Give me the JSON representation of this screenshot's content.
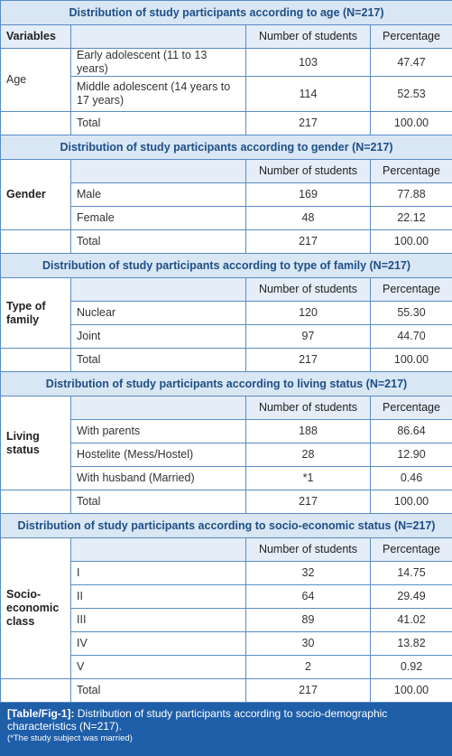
{
  "sections": [
    {
      "title": "Distribution of study participants according to age (N=217)",
      "header": {
        "variable": "Variables",
        "number": "Number of students",
        "percentage": "Percentage"
      },
      "variable": "Age",
      "rows": [
        {
          "label": "Early adolescent (11 to 13 years)",
          "number": "103",
          "percentage": "47.47"
        },
        {
          "label": "Middle adolescent (14 years to 17 years)",
          "number": "114",
          "percentage": "52.53"
        }
      ],
      "total": {
        "label": "Total",
        "number": "217",
        "percentage": "100.00"
      }
    },
    {
      "title": "Distribution of study participants according to gender (N=217)",
      "header": {
        "number": "Number of students",
        "percentage": "Percentage"
      },
      "variable": "Gender",
      "rows": [
        {
          "label": "Male",
          "number": "169",
          "percentage": "77.88"
        },
        {
          "label": "Female",
          "number": "48",
          "percentage": "22.12"
        }
      ],
      "total": {
        "label": "Total",
        "number": "217",
        "percentage": "100.00"
      }
    },
    {
      "title": "Distribution of study participants according to type of family (N=217)",
      "header": {
        "number": "Number of students",
        "percentage": "Percentage"
      },
      "variable": "Type of family",
      "rows": [
        {
          "label": "Nuclear",
          "number": "120",
          "percentage": "55.30"
        },
        {
          "label": "Joint",
          "number": "97",
          "percentage": "44.70"
        }
      ],
      "total": {
        "label": "Total",
        "number": "217",
        "percentage": "100.00"
      }
    },
    {
      "title": "Distribution of study participants according to living status (N=217)",
      "header": {
        "number": "Number of students",
        "percentage": "Percentage"
      },
      "variable": "Living status",
      "rows": [
        {
          "label": "With parents",
          "number": "188",
          "percentage": "86.64"
        },
        {
          "label": "Hostelite (Mess/Hostel)",
          "number": "28",
          "percentage": "12.90"
        },
        {
          "label": "With husband (Married)",
          "number": "*1",
          "percentage": "0.46"
        }
      ],
      "total": {
        "label": "Total",
        "number": "217",
        "percentage": "100.00"
      }
    },
    {
      "title": "Distribution of study participants according to socio-economic status (N=217)",
      "header": {
        "number": "Number of students",
        "percentage": "Percentage"
      },
      "variable": "Socio-economic class",
      "rows": [
        {
          "label": "I",
          "number": "32",
          "percentage": "14.75"
        },
        {
          "label": "II",
          "number": "64",
          "percentage": "29.49"
        },
        {
          "label": "III",
          "number": "89",
          "percentage": "41.02"
        },
        {
          "label": "IV",
          "number": "30",
          "percentage": "13.82"
        },
        {
          "label": "V",
          "number": "2",
          "percentage": "0.92"
        }
      ],
      "total": {
        "label": "Total",
        "number": "217",
        "percentage": "100.00"
      }
    }
  ],
  "caption": {
    "label": "[Table/Fig-1]:",
    "text": "Distribution of study participants according to socio-demographic characteristics (N=217).",
    "note": "(*The study subject was married)"
  }
}
